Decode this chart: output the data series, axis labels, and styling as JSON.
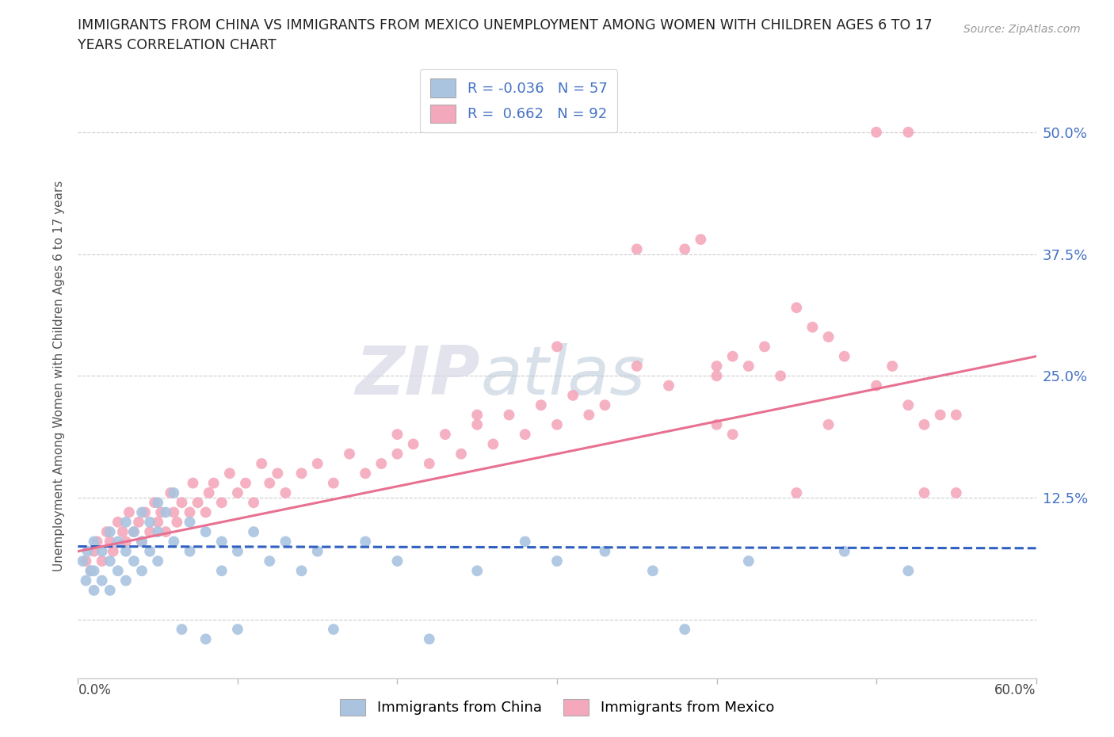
{
  "title_line1": "IMMIGRANTS FROM CHINA VS IMMIGRANTS FROM MEXICO UNEMPLOYMENT AMONG WOMEN WITH CHILDREN AGES 6 TO 17",
  "title_line2": "YEARS CORRELATION CHART",
  "source": "Source: ZipAtlas.com",
  "ylabel": "Unemployment Among Women with Children Ages 6 to 17 years",
  "yticks": [
    0.0,
    0.125,
    0.25,
    0.375,
    0.5
  ],
  "ytick_labels": [
    "",
    "12.5%",
    "25.0%",
    "37.5%",
    "50.0%"
  ],
  "xmin": 0.0,
  "xmax": 0.6,
  "ymin": -0.06,
  "ymax": 0.56,
  "china_R": -0.036,
  "china_N": 57,
  "mexico_R": 0.662,
  "mexico_N": 92,
  "china_color": "#aac4e0",
  "mexico_color": "#f4a8bc",
  "china_line_color": "#3060c0",
  "mexico_line_color": "#e87090",
  "watermark_ZIP": "ZIP",
  "watermark_atlas": "atlas",
  "background_color": "#ffffff",
  "grid_color": "#cccccc",
  "china_x": [
    0.003,
    0.005,
    0.006,
    0.008,
    0.01,
    0.01,
    0.01,
    0.015,
    0.015,
    0.02,
    0.02,
    0.02,
    0.025,
    0.025,
    0.03,
    0.03,
    0.03,
    0.035,
    0.035,
    0.04,
    0.04,
    0.04,
    0.045,
    0.045,
    0.05,
    0.05,
    0.05,
    0.055,
    0.06,
    0.06,
    0.065,
    0.07,
    0.07,
    0.08,
    0.08,
    0.09,
    0.09,
    0.1,
    0.1,
    0.11,
    0.12,
    0.13,
    0.14,
    0.15,
    0.16,
    0.18,
    0.2,
    0.22,
    0.25,
    0.28,
    0.3,
    0.33,
    0.36,
    0.38,
    0.42,
    0.48,
    0.52
  ],
  "china_y": [
    0.06,
    0.04,
    0.07,
    0.05,
    0.08,
    0.05,
    0.03,
    0.07,
    0.04,
    0.09,
    0.06,
    0.03,
    0.08,
    0.05,
    0.1,
    0.07,
    0.04,
    0.09,
    0.06,
    0.11,
    0.08,
    0.05,
    0.1,
    0.07,
    0.12,
    0.09,
    0.06,
    0.11,
    0.13,
    0.08,
    -0.01,
    0.1,
    0.07,
    0.09,
    -0.02,
    0.08,
    0.05,
    0.07,
    -0.01,
    0.09,
    0.06,
    0.08,
    0.05,
    0.07,
    -0.01,
    0.08,
    0.06,
    -0.02,
    0.05,
    0.08,
    0.06,
    0.07,
    0.05,
    -0.01,
    0.06,
    0.07,
    0.05
  ],
  "mexico_x": [
    0.005,
    0.008,
    0.01,
    0.012,
    0.015,
    0.018,
    0.02,
    0.022,
    0.025,
    0.028,
    0.03,
    0.032,
    0.035,
    0.038,
    0.04,
    0.042,
    0.045,
    0.048,
    0.05,
    0.052,
    0.055,
    0.058,
    0.06,
    0.062,
    0.065,
    0.07,
    0.072,
    0.075,
    0.08,
    0.082,
    0.085,
    0.09,
    0.095,
    0.1,
    0.105,
    0.11,
    0.115,
    0.12,
    0.125,
    0.13,
    0.14,
    0.15,
    0.16,
    0.17,
    0.18,
    0.19,
    0.2,
    0.21,
    0.22,
    0.23,
    0.24,
    0.25,
    0.26,
    0.27,
    0.28,
    0.29,
    0.3,
    0.31,
    0.32,
    0.33,
    0.35,
    0.37,
    0.38,
    0.39,
    0.4,
    0.41,
    0.42,
    0.43,
    0.44,
    0.45,
    0.46,
    0.47,
    0.48,
    0.5,
    0.51,
    0.52,
    0.53,
    0.54,
    0.4,
    0.41,
    0.45,
    0.47,
    0.5,
    0.52,
    0.53,
    0.55,
    0.55,
    0.2,
    0.25,
    0.3,
    0.35,
    0.4
  ],
  "mexico_y": [
    0.06,
    0.05,
    0.07,
    0.08,
    0.06,
    0.09,
    0.08,
    0.07,
    0.1,
    0.09,
    0.08,
    0.11,
    0.09,
    0.1,
    0.08,
    0.11,
    0.09,
    0.12,
    0.1,
    0.11,
    0.09,
    0.13,
    0.11,
    0.1,
    0.12,
    0.11,
    0.14,
    0.12,
    0.11,
    0.13,
    0.14,
    0.12,
    0.15,
    0.13,
    0.14,
    0.12,
    0.16,
    0.14,
    0.15,
    0.13,
    0.15,
    0.16,
    0.14,
    0.17,
    0.15,
    0.16,
    0.17,
    0.18,
    0.16,
    0.19,
    0.17,
    0.2,
    0.18,
    0.21,
    0.19,
    0.22,
    0.2,
    0.23,
    0.21,
    0.22,
    0.26,
    0.24,
    0.38,
    0.39,
    0.25,
    0.27,
    0.26,
    0.28,
    0.25,
    0.32,
    0.3,
    0.29,
    0.27,
    0.24,
    0.26,
    0.22,
    0.2,
    0.21,
    0.26,
    0.19,
    0.13,
    0.2,
    0.5,
    0.5,
    0.13,
    0.21,
    0.13,
    0.19,
    0.21,
    0.28,
    0.38,
    0.2
  ]
}
